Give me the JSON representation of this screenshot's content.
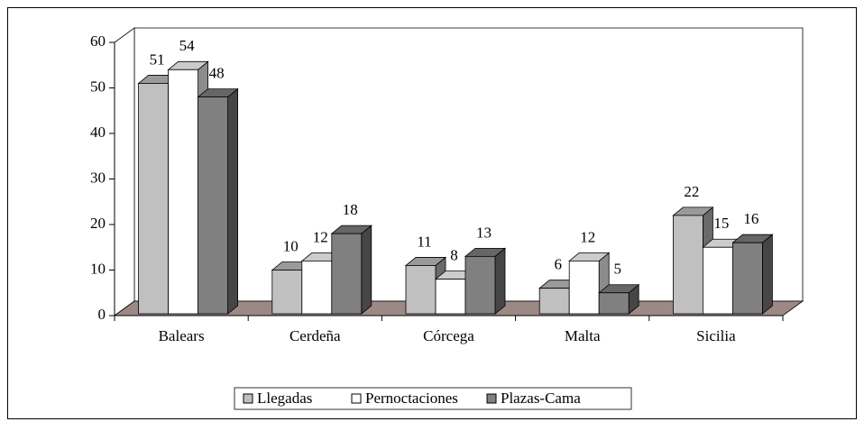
{
  "chart_data": {
    "type": "bar3d",
    "categories": [
      "Balears",
      "Cerdeña",
      "Córcega",
      "Malta",
      "Sicilia"
    ],
    "series": [
      {
        "name": "Llegadas",
        "color": "#c0c0c0",
        "values": [
          51,
          10,
          11,
          6,
          22
        ]
      },
      {
        "name": "Pernoctaciones",
        "color": "#ffffff",
        "values": [
          54,
          12,
          8,
          12,
          15
        ]
      },
      {
        "name": "Plazas-Cama",
        "color": "#808080",
        "values": [
          48,
          18,
          13,
          5,
          16
        ]
      }
    ],
    "ylim": [
      0,
      60
    ],
    "yticks": [
      0,
      10,
      20,
      30,
      40,
      50,
      60
    ],
    "grid": false,
    "legend": "bottom"
  }
}
